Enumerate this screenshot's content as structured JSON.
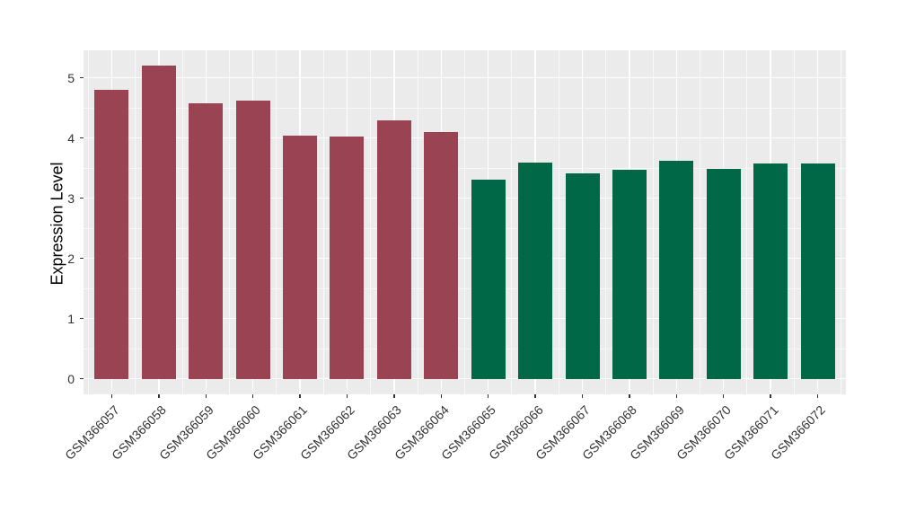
{
  "chart_data": {
    "type": "bar",
    "title": "",
    "xlabel": "",
    "ylabel": "Expression Level",
    "categories": [
      "GSM366057",
      "GSM366058",
      "GSM366059",
      "GSM366060",
      "GSM366061",
      "GSM366062",
      "GSM366063",
      "GSM366064",
      "GSM366065",
      "GSM366066",
      "GSM366067",
      "GSM366068",
      "GSM366069",
      "GSM366070",
      "GSM366071",
      "GSM366072"
    ],
    "values": [
      4.8,
      5.2,
      4.58,
      4.62,
      4.04,
      4.03,
      4.3,
      4.1,
      3.31,
      3.59,
      3.42,
      3.48,
      3.62,
      3.49,
      3.58,
      3.58
    ],
    "bar_colors": [
      "#9A4352",
      "#9A4352",
      "#9A4352",
      "#9A4352",
      "#9A4352",
      "#9A4352",
      "#9A4352",
      "#9A4352",
      "#006747",
      "#006747",
      "#006747",
      "#006747",
      "#006747",
      "#006747",
      "#006747",
      "#006747"
    ],
    "group_colors": {
      "left_group_red": "#9A4352",
      "right_group_green": "#006747"
    },
    "yticks": [
      0,
      1,
      2,
      3,
      4,
      5
    ],
    "ytick_labels": [
      "0",
      "1",
      "2",
      "3",
      "4",
      "5"
    ],
    "yminor": [
      0.5,
      1.5,
      2.5,
      3.5,
      4.5
    ],
    "ylim": [
      -0.26,
      5.46
    ],
    "x_label_angle_deg": -45,
    "legend": "none",
    "grid": {
      "panel_bg": "#EBEBEB",
      "major_color": "#FFFFFF",
      "minor_color": "rgba(255,255,255,0.7)"
    },
    "axis_text_color": "#333333",
    "tick_mark_color": "#333333"
  }
}
